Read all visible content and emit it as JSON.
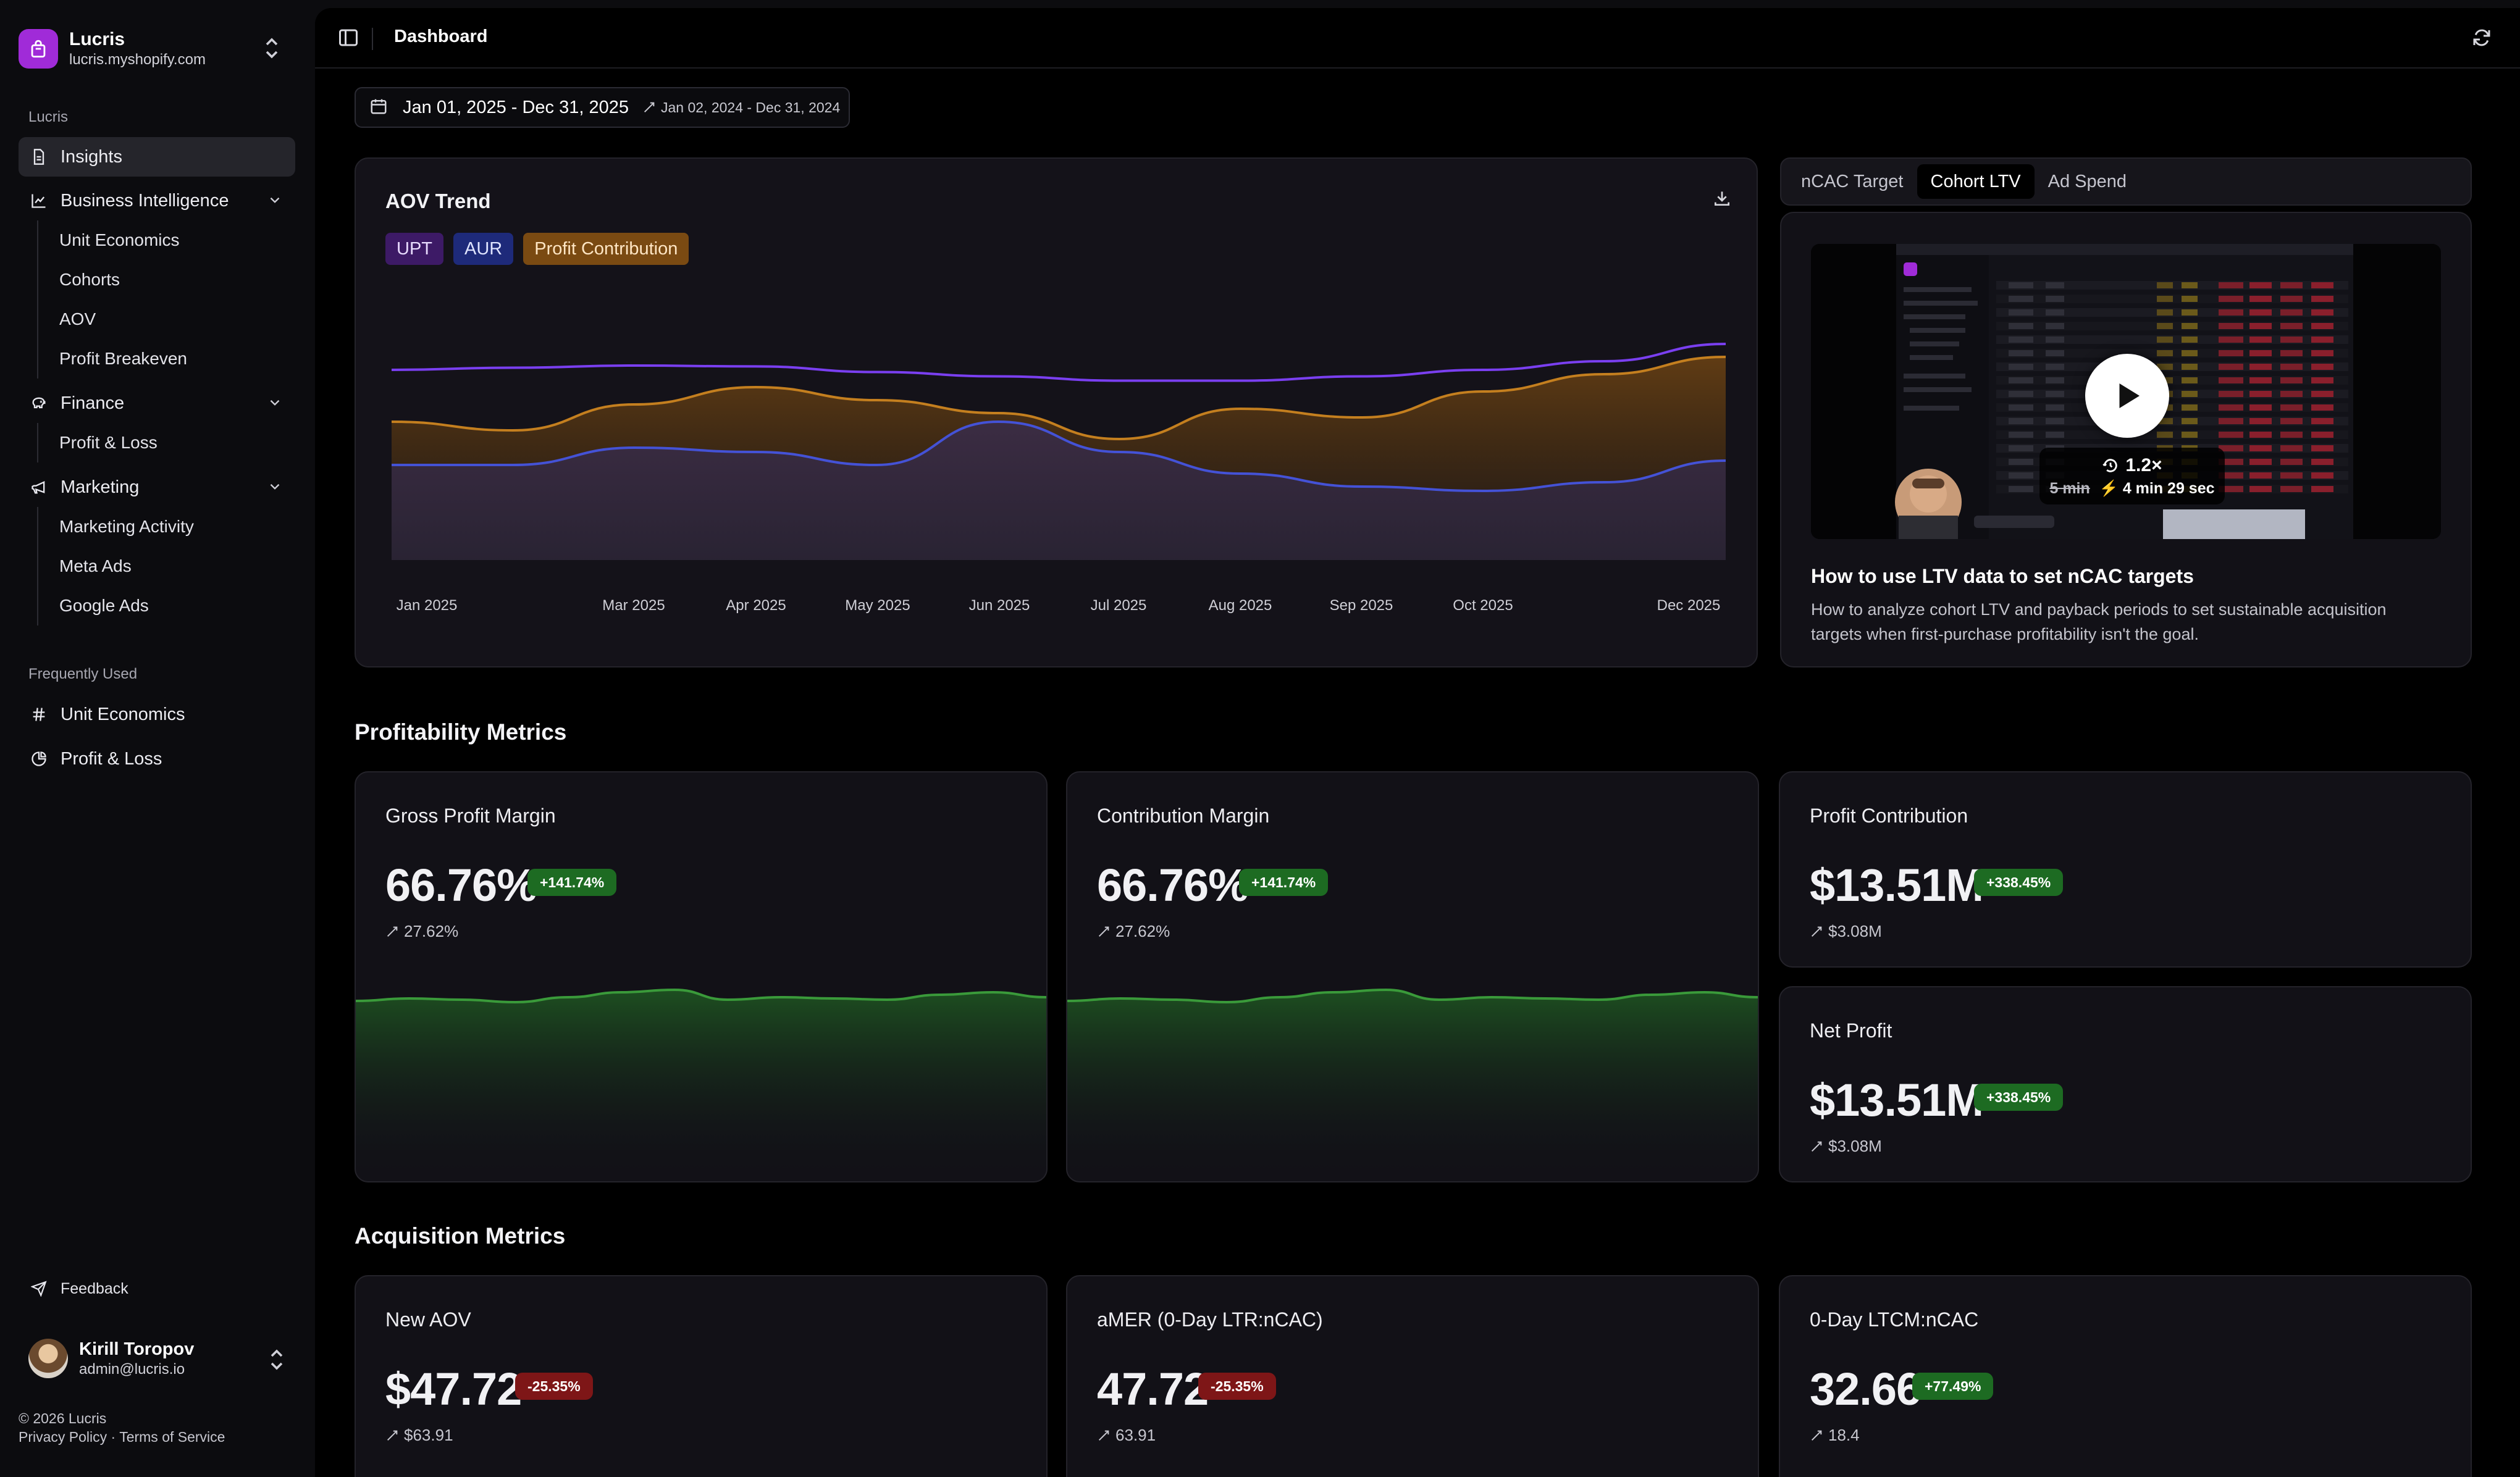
{
  "shop": {
    "name": "Lucris",
    "domain": "lucris.myshopify.com",
    "icon": "bag-icon"
  },
  "sidebar": {
    "section_label": "Lucris",
    "insights": "Insights",
    "bi": {
      "label": "Business Intelligence",
      "children": [
        "Unit Economics",
        "Cohorts",
        "AOV",
        "Profit Breakeven"
      ]
    },
    "finance": {
      "label": "Finance",
      "children": [
        "Profit & Loss"
      ]
    },
    "marketing": {
      "label": "Marketing",
      "children": [
        "Marketing Activity",
        "Meta Ads",
        "Google Ads"
      ]
    },
    "frequent_label": "Frequently Used",
    "frequent": [
      "Unit Economics",
      "Profit & Loss"
    ],
    "feedback": "Feedback"
  },
  "user": {
    "name": "Kirill Toropov",
    "email": "admin@lucris.io"
  },
  "legal": {
    "copyright": "© 2026 Lucris",
    "privacy": "Privacy Policy",
    "separator": " · ",
    "terms": "Terms of Service"
  },
  "header": {
    "title": "Dashboard"
  },
  "date_range": {
    "current": "Jan 01, 2025 - Dec 31, 2025",
    "compare": "Jan 02, 2024 - Dec 31, 2024"
  },
  "aov_chart": {
    "title": "AOV Trend",
    "legend": [
      {
        "label": "UPT",
        "color": "#7a3ff0"
      },
      {
        "label": "AUR",
        "color": "#3e4bd0"
      },
      {
        "label": "Profit Contribution",
        "color": "#c07a1e"
      }
    ]
  },
  "chart_data": {
    "type": "area",
    "title": "AOV Trend",
    "x_ticks": [
      "Jan 2025",
      "Mar 2025",
      "Apr 2025",
      "May 2025",
      "Jun 2025",
      "Jul 2025",
      "Aug 2025",
      "Sep 2025",
      "Oct 2025",
      "Dec 2025"
    ],
    "x": [
      0,
      1,
      2,
      3,
      4,
      5,
      6,
      7,
      8,
      9,
      10,
      11
    ],
    "series": [
      {
        "name": "UPT",
        "values": [
          74,
          74.5,
          75,
          74.8,
          73.5,
          72.5,
          71.5,
          71.5,
          72.5,
          74,
          76,
          80
        ]
      },
      {
        "name": "AUR",
        "values": [
          52,
          52,
          56,
          55,
          52,
          62,
          55,
          50,
          47,
          46,
          48,
          53
        ]
      },
      {
        "name": "Profit Contribution",
        "values": [
          62,
          60,
          66,
          70,
          67,
          64,
          58,
          65,
          63,
          69,
          73,
          77
        ]
      }
    ]
  },
  "side_tabs": [
    "nCAC Target",
    "Cohort LTV",
    "Ad Spend"
  ],
  "video": {
    "title": "How to use LTV data to set nCAC targets",
    "description": "How to analyze cohort LTV and payback periods to set sustainable acquisition targets when first-purchase profitability isn't the goal.",
    "speed": "1.2×",
    "old_duration": "5 min",
    "new_duration": "4 min 29 sec",
    "play_icon": "play-icon"
  },
  "profitability": {
    "title": "Profitability Metrics",
    "cards": [
      {
        "title": "Gross Profit Margin",
        "value": "66.76%",
        "change": "+141.74%",
        "previous": "27.62%",
        "trend": [
          55,
          57,
          56,
          54,
          58,
          62,
          64,
          56,
          58,
          57,
          56,
          60,
          62,
          58
        ]
      },
      {
        "title": "Contribution Margin",
        "value": "66.76%",
        "change": "+141.74%",
        "previous": "27.62%",
        "trend": [
          55,
          57,
          56,
          54,
          58,
          62,
          64,
          56,
          58,
          57,
          56,
          60,
          62,
          58
        ]
      },
      {
        "title": "Profit Contribution",
        "value": "$13.51M",
        "change": "+338.45%",
        "previous": "$3.08M"
      },
      {
        "title": "Net Profit",
        "value": "$13.51M",
        "change": "+338.45%",
        "previous": "$3.08M"
      }
    ]
  },
  "acquisition": {
    "title": "Acquisition Metrics",
    "cards": [
      {
        "title": "New AOV",
        "value": "$47.72",
        "change": "-25.35%",
        "previous": "$63.91"
      },
      {
        "title": "aMER (0-Day LTR:nCAC)",
        "value": "47.72",
        "change": "-25.35%",
        "previous": "63.91"
      },
      {
        "title": "0-Day LTCM:nCAC",
        "value": "32.66",
        "change": "+77.49%",
        "previous": "18.4"
      }
    ]
  }
}
